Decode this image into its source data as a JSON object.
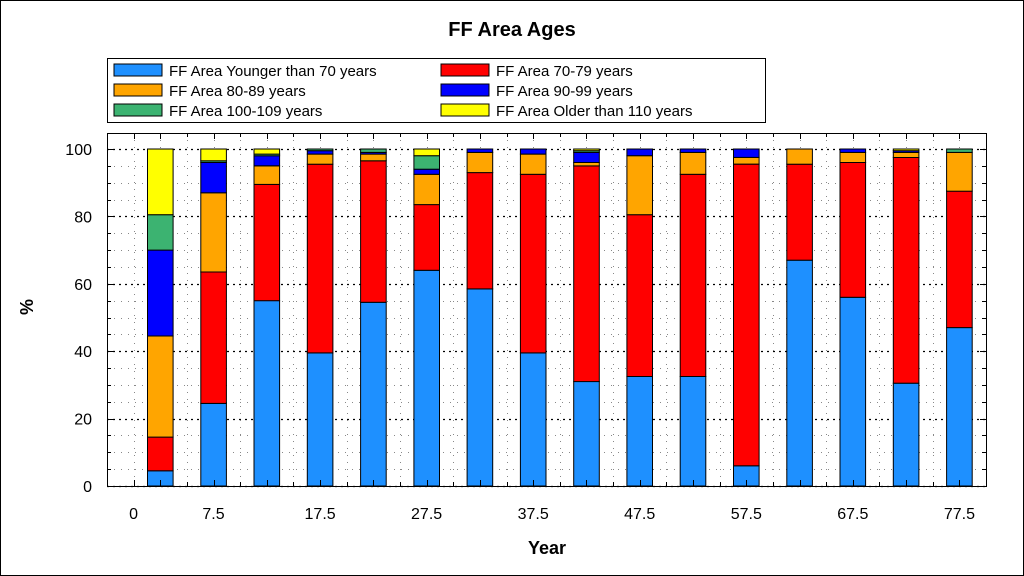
{
  "chart_data": {
    "type": "bar",
    "stacked": true,
    "title": "FF Area Ages",
    "xlabel": "Year",
    "ylabel": "%",
    "ylim": [
      0,
      100
    ],
    "xlim": [
      -2.5,
      80
    ],
    "grid": true,
    "legend_position": "top",
    "x_ticks": [
      "0",
      "7.5",
      "17.5",
      "27.5",
      "37.5",
      "47.5",
      "57.5",
      "67.5",
      "77.5"
    ],
    "y_ticks": [
      "0",
      "20",
      "40",
      "60",
      "80",
      "100"
    ],
    "x": [
      2.5,
      7.5,
      12.5,
      17.5,
      22.5,
      27.5,
      32.5,
      37.5,
      42.5,
      47.5,
      52.5,
      57.5,
      62.5,
      67.5,
      72.5,
      77.5
    ],
    "series": [
      {
        "name": "FF Area Younger than 70 years",
        "color": "#1e90ff",
        "values": [
          4.5,
          24.5,
          55,
          39.5,
          54.5,
          64,
          58.5,
          39.5,
          31,
          32.5,
          32.5,
          6,
          67,
          56,
          30.5,
          47
        ]
      },
      {
        "name": "FF Area 70-79 years",
        "color": "#ff0000",
        "values": [
          10,
          39,
          34.5,
          56,
          42,
          19.5,
          34.5,
          53,
          64,
          48,
          60,
          89.5,
          28.5,
          40,
          67,
          40.5
        ]
      },
      {
        "name": "FF Area 80-89 years",
        "color": "#ffa500",
        "values": [
          30,
          23.5,
          5.5,
          3,
          2,
          9,
          6,
          6,
          1,
          17.5,
          6.5,
          2,
          4.5,
          3,
          1.5,
          11.5
        ]
      },
      {
        "name": "FF Area 90-99 years",
        "color": "#0000ff",
        "values": [
          25.5,
          9,
          3,
          1,
          0.5,
          1.5,
          1,
          1.5,
          3,
          2,
          1,
          2.5,
          0,
          1,
          0.5,
          0
        ]
      },
      {
        "name": "FF Area 100-109 years",
        "color": "#3cb371",
        "values": [
          10.5,
          0.5,
          0.5,
          0.5,
          1,
          4,
          0,
          0,
          0.5,
          0,
          0,
          0,
          0,
          0,
          0,
          1
        ]
      },
      {
        "name": "FF Area Older than 110 years",
        "color": "#ffff00",
        "values": [
          19.5,
          3.5,
          1.5,
          0,
          0,
          2,
          0,
          0,
          0.5,
          0,
          0,
          0,
          0,
          0,
          0.5,
          0
        ]
      }
    ]
  }
}
